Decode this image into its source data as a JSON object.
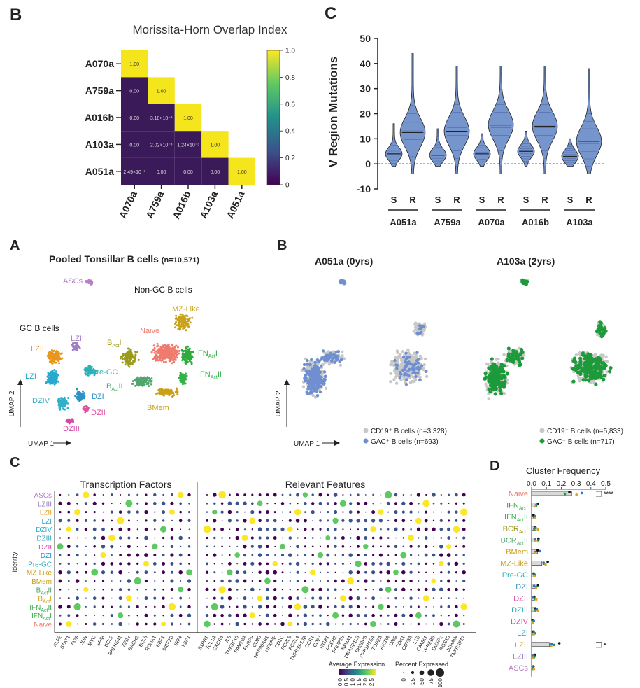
{
  "panel_labels": {
    "heatmap": "B",
    "violin": "C",
    "umap_pooled": "A",
    "umap_split": "B",
    "dotplot": "C",
    "frequency": "D"
  },
  "colors": {
    "heat_low": "#3b1a5a",
    "heat_mid": "#23888e",
    "heat_high": "#f4e51c",
    "grey_cells": "#c8c8c8",
    "blue_cells": "#6f8fd1",
    "green_cells": "#1d9a3a",
    "violin_fill": "#7795cd"
  },
  "chart_data": [
    {
      "type": "heatmap",
      "title": "Morissita-Horn Overlap Index",
      "rows": [
        "A070a",
        "A759a",
        "A016b",
        "A103a",
        "A051a"
      ],
      "columns": [
        "A070a",
        "A759a",
        "A016b",
        "A103a",
        "A051a"
      ],
      "cells": [
        [
          "1.00",
          null,
          null,
          null,
          null
        ],
        [
          "0.00",
          "1.00",
          null,
          null,
          null
        ],
        [
          "0.00",
          "3.18×10⁻³",
          "1.00",
          null,
          null
        ],
        [
          "0.00",
          "2.02×10⁻³",
          "1.24×10⁻³",
          "1.00",
          null
        ],
        [
          "2.49×10⁻³",
          "0.00",
          "0.00",
          "0.00",
          "1.00"
        ]
      ],
      "values": [
        [
          1.0,
          null,
          null,
          null,
          null
        ],
        [
          0.0,
          1.0,
          null,
          null,
          null
        ],
        [
          0.0,
          0.00318,
          1.0,
          null,
          null
        ],
        [
          0.0,
          0.00202,
          0.00124,
          1.0,
          null
        ],
        [
          0.00249,
          0.0,
          0.0,
          0.0,
          1.0
        ]
      ],
      "colorbar": {
        "range": [
          0,
          1.0
        ],
        "ticks": [
          "0",
          "0.2",
          "0.4",
          "0.6",
          "0.8",
          "1.0"
        ]
      }
    },
    {
      "type": "violin",
      "ylabel": "V Region Mutations",
      "ylim": [
        -10,
        50
      ],
      "yticks": [
        "-10",
        "0",
        "10",
        "20",
        "30",
        "40",
        "50"
      ],
      "groups": [
        "A051a",
        "A759a",
        "A070a",
        "A016b",
        "A103a"
      ],
      "subgroups": [
        "S",
        "R"
      ],
      "medians": {
        "A051a": [
          4,
          12.5
        ],
        "A759a": [
          3.5,
          13
        ],
        "A070a": [
          4,
          15.5
        ],
        "A016b": [
          5,
          15
        ],
        "A103a": [
          3,
          9
        ]
      },
      "max_values": {
        "A051a": [
          16,
          44
        ],
        "A759a": [
          14,
          39
        ],
        "A070a": [
          12,
          39
        ],
        "A016b": [
          13,
          39
        ],
        "A103a": [
          10,
          38
        ]
      }
    },
    {
      "type": "scatter",
      "title": "Pooled Tonsillar B cells",
      "title_n": "(n=10,571)",
      "xlabel": "UMAP 1",
      "ylabel": "UMAP 2",
      "group_labels": {
        "gc": "GC B cells",
        "nongc": "Non-GC B cells"
      },
      "clusters": [
        {
          "name": "ASCs",
          "color": "#b77fc6"
        },
        {
          "name": "MZ-Like",
          "color": "#c9a21a"
        },
        {
          "name": "Naive",
          "color": "#ef7a6e"
        },
        {
          "name": "B",
          "sub": "Act",
          "suffix": "I",
          "color": "#9a9a1d"
        },
        {
          "name": "IFN",
          "sub": "Act",
          "suffix": "I",
          "color": "#2eab3b"
        },
        {
          "name": "IFN",
          "sub": "Act",
          "suffix": "II",
          "color": "#33b24a"
        },
        {
          "name": "B",
          "sub": "Act",
          "suffix": "II",
          "color": "#4fa56b"
        },
        {
          "name": "BMem",
          "color": "#c9a019"
        },
        {
          "name": "LZII",
          "color": "#e8961e"
        },
        {
          "name": "LZIII",
          "color": "#a07fc4"
        },
        {
          "name": "LZI",
          "color": "#2aa9cc"
        },
        {
          "name": "Pre-GC",
          "color": "#2bb1b5"
        },
        {
          "name": "DZI",
          "color": "#2d93c6"
        },
        {
          "name": "DZII",
          "color": "#e04fa1"
        },
        {
          "name": "DZIV",
          "color": "#2fb0c8"
        },
        {
          "name": "DZIII",
          "color": "#d548a8"
        }
      ]
    },
    {
      "type": "scatter",
      "xlabel": "UMAP 1",
      "ylabel": "UMAP 2",
      "panels": [
        {
          "title": "A051a (0yrs)",
          "legend": [
            "CD19⁺ B cells (n=3,328)",
            "GAC⁺ B cells (n=693)"
          ],
          "highlight_color": "#6f8fd1"
        },
        {
          "title": "A103a (2yrs)",
          "legend": [
            "CD19⁺ B cells (n=5,833)",
            "GAC⁺ B cells (n=717)"
          ],
          "highlight_color": "#1d9a3a"
        }
      ]
    },
    {
      "type": "dotplot",
      "section_titles": [
        "Transcription Factors",
        "Relevant Features"
      ],
      "ylabel": "Identity",
      "rows": [
        {
          "name": "ASCs",
          "color": "#b77fc6"
        },
        {
          "name": "LZIII",
          "color": "#a07fc4"
        },
        {
          "name": "LZII",
          "color": "#e0a11c"
        },
        {
          "name": "LZI",
          "color": "#2aa9cc"
        },
        {
          "name": "DZIV",
          "color": "#2fb0c8"
        },
        {
          "name": "DZIII",
          "color": "#2fa8b9"
        },
        {
          "name": "DZII",
          "color": "#d548a8"
        },
        {
          "name": "DZI",
          "color": "#2d93c6"
        },
        {
          "name": "Pre-GC",
          "color": "#2bb1b5"
        },
        {
          "name": "MZ-Like",
          "color": "#c9a21a"
        },
        {
          "name": "BMem",
          "color": "#c9a019"
        },
        {
          "name": "B",
          "sub": "Act",
          "suffix": "II",
          "color": "#4fa56b"
        },
        {
          "name": "B",
          "sub": "Act",
          "suffix": "I",
          "color": "#c9a21a"
        },
        {
          "name": "IFN",
          "sub": "Act",
          "suffix": "II",
          "color": "#33b24a"
        },
        {
          "name": "IFN",
          "sub": "Act",
          "suffix": "I",
          "color": "#2eab3b"
        },
        {
          "name": "Naive",
          "color": "#ef7a6e"
        }
      ],
      "tf_genes": [
        "KLF2",
        "STAT1",
        "FOS",
        "JUN",
        "MYC",
        "SPIB",
        "BCL2",
        "BHLHE41",
        "ZEB2",
        "BACH2",
        "BCL6",
        "RUNX1",
        "EBF1",
        "MEF2B",
        "IRF4",
        "XBP1"
      ],
      "feature_genes": [
        "S1PR1",
        "TCL1A",
        "CXCR4",
        "IL6",
        "TNFSF10",
        "FAM19A",
        "PARP9",
        "CD83",
        "HSP90AB1",
        "NFKBIE",
        "CD1C",
        "FCRL5",
        "FCRL4",
        "TNFRSF13B",
        "CCR1",
        "CD27",
        "ITGB1",
        "FCER2",
        "PRNP15",
        "NR4A1",
        "DNASE1L3",
        "SH3BP5",
        "PPP1R15A",
        "TOP2A",
        "AICDA",
        "UNG",
        "CDK1",
        "CD79A",
        "LTB",
        "CAMK1",
        "VPREB3",
        "DUSP2",
        "RGS13",
        "JCHAIN",
        "TNFRSF17"
      ],
      "expression_legend": {
        "title": "Average Expression",
        "ticks": [
          "0.0",
          "0.5",
          "1.0",
          "1.5",
          "2.0",
          "2.5"
        ]
      },
      "percent_legend": {
        "title": "Percent Expressed",
        "ticks": [
          "0",
          "25",
          "50",
          "75",
          "100"
        ]
      }
    },
    {
      "type": "bar",
      "title": "Cluster Frequency",
      "xlim": [
        0,
        0.5
      ],
      "xticks": [
        "0.0",
        "0.1",
        "0.2",
        "0.3",
        "0.4",
        "0.5"
      ],
      "categories": [
        {
          "name": "Naive",
          "color": "#ef7a6e"
        },
        {
          "name": "IFN",
          "sub": "Act",
          "suffix": "I",
          "color": "#2eab3b"
        },
        {
          "name": "IFN",
          "sub": "Act",
          "suffix": "II",
          "color": "#33b24a"
        },
        {
          "name": "BCR",
          "sub": "Act",
          "suffix": "I",
          "color": "#9a9a1d"
        },
        {
          "name": "BCR",
          "sub": "Act",
          "suffix": "II",
          "color": "#4fa56b"
        },
        {
          "name": "BMem",
          "color": "#c9a019"
        },
        {
          "name": "MZ-Like",
          "color": "#c9a21a"
        },
        {
          "name": "Pre-GC",
          "color": "#2bb1b5"
        },
        {
          "name": "DZI",
          "color": "#2d93c6"
        },
        {
          "name": "DZII",
          "color": "#d548a8"
        },
        {
          "name": "DZIII",
          "color": "#2fa8b9"
        },
        {
          "name": "DZIV",
          "color": "#d548a8"
        },
        {
          "name": "LZI",
          "color": "#2aa9cc"
        },
        {
          "name": "LZII",
          "color": "#e0a11c"
        },
        {
          "name": "LZIII",
          "color": "#a07fc4"
        },
        {
          "name": "ASCs",
          "color": "#b77fc6"
        }
      ],
      "values": [
        0.27,
        0.03,
        0.02,
        0.03,
        0.03,
        0.04,
        0.07,
        0.02,
        0.03,
        0.02,
        0.03,
        0.01,
        0.02,
        0.12,
        0.02,
        0.01
      ],
      "significance": [
        {
          "label": "****",
          "row": "Naive"
        },
        {
          "label": "*",
          "row": "LZII"
        }
      ]
    }
  ]
}
